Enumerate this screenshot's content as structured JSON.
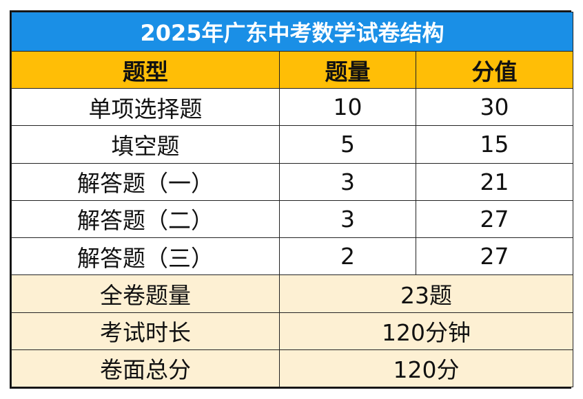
{
  "title": "2025年广东中考数学试卷结构",
  "headers": [
    "题型",
    "题量",
    "分值"
  ],
  "rows": [
    {
      "type": "单项选择题",
      "count": "10",
      "score": "30"
    },
    {
      "type": "填空题",
      "count": "5",
      "score": "15"
    },
    {
      "type": "解答题（一）",
      "count": "3",
      "score": "21"
    },
    {
      "type": "解答题（二）",
      "count": "3",
      "score": "27"
    },
    {
      "type": "解答题（三）",
      "count": "2",
      "score": "27"
    }
  ],
  "summary": [
    {
      "label": "全卷题量",
      "value": "23题"
    },
    {
      "label": "考试时长",
      "value": "120分钟"
    },
    {
      "label": "卷面总分",
      "value": "120分"
    }
  ],
  "colors": {
    "title_bg": "#1a8fe6",
    "header_bg": "#ffbe06",
    "summary_bg": "#fdf0d3",
    "border": "#222222"
  }
}
